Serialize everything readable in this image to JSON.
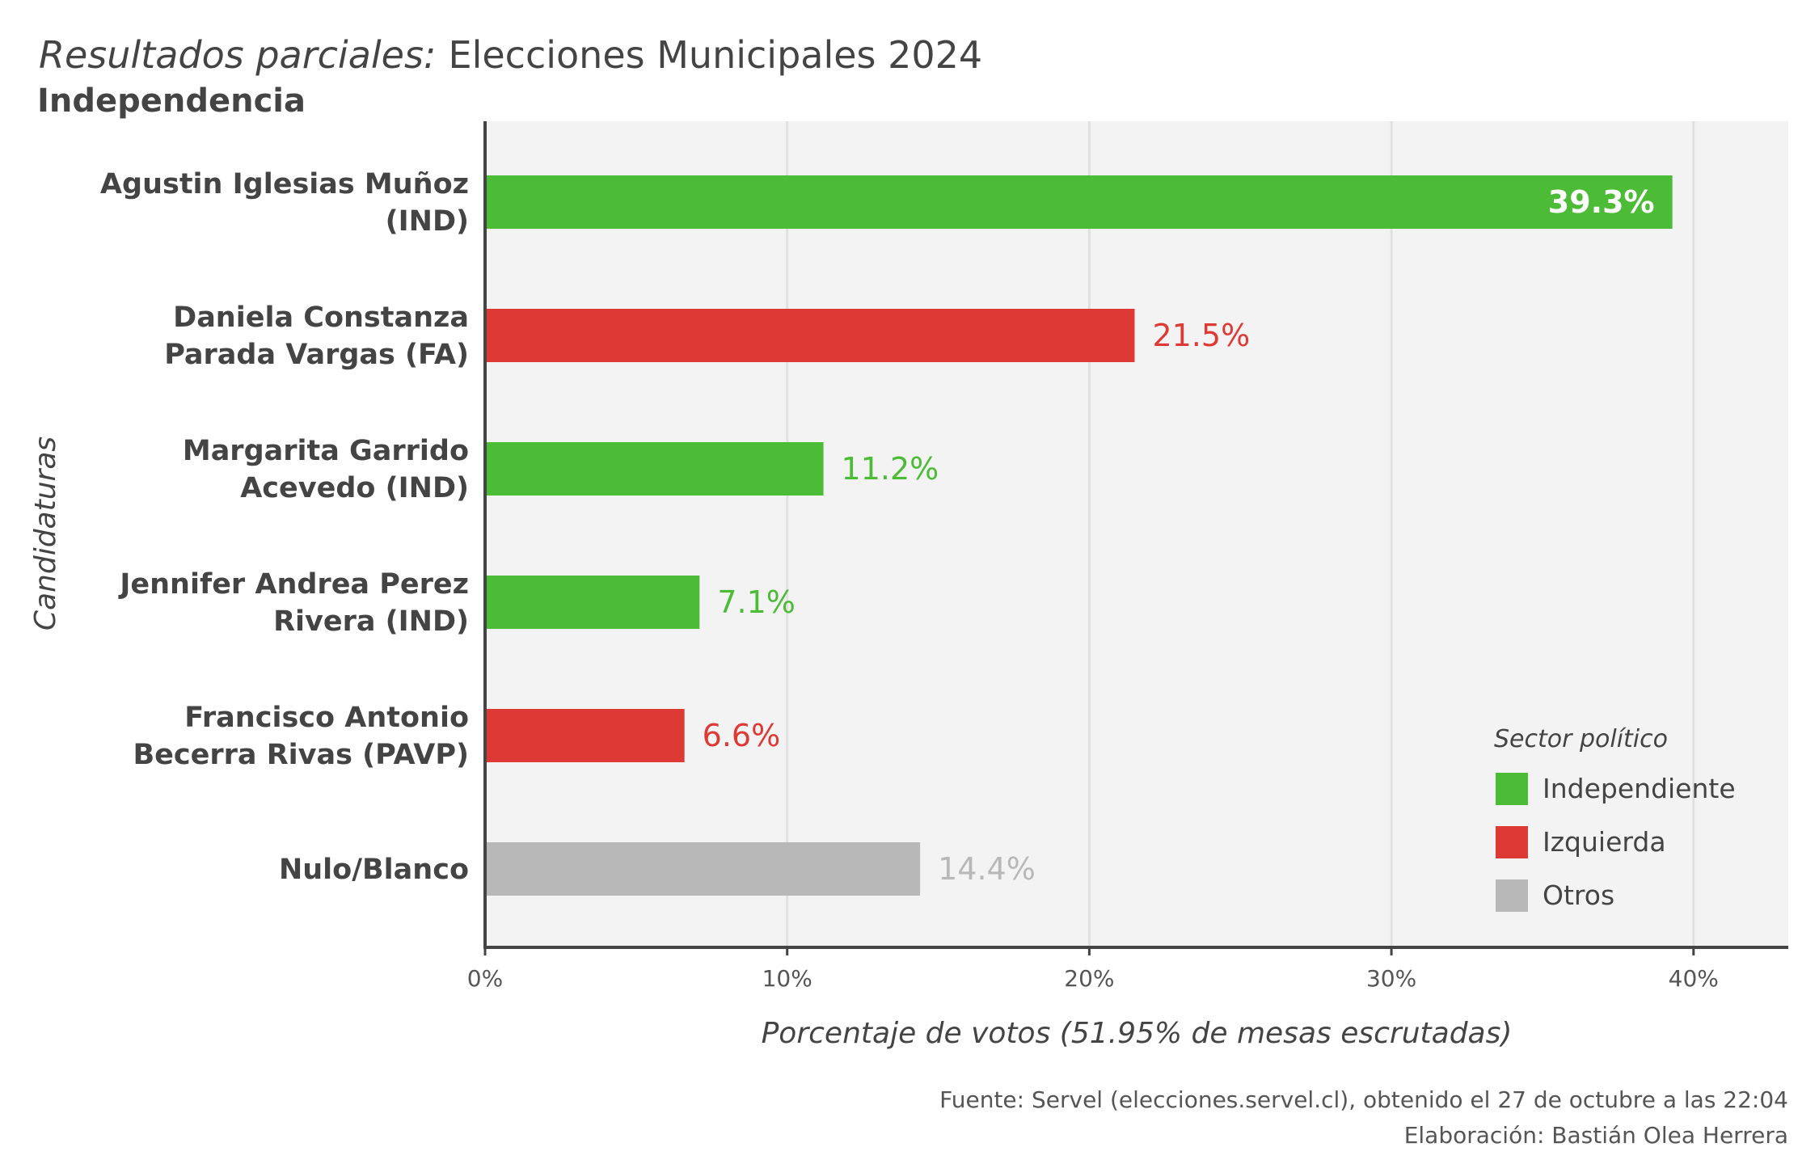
{
  "title_prefix": "Resultados parciales:",
  "title_main": "Elecciones Municipales 2024",
  "subtitle": "Independencia",
  "caption_source": "Fuente: Servel (elecciones.servel.cl), obtenido el 27 de octubre a las 22:04",
  "caption_author": "Elaboración: Bastián Olea Herrera",
  "colors": {
    "Independiente": "#4cbb36",
    "Izquierda": "#de3a35",
    "Otros": "#b8b8b8",
    "panel": "#f3f3f3",
    "grid": "#e0e0e0",
    "axis": "#444444"
  },
  "chart_data": {
    "type": "bar",
    "orientation": "horizontal",
    "xlabel": "Porcentaje de votos (51.95% de mesas escrutadas)",
    "ylabel": "Candidaturas",
    "xlim": [
      0,
      43
    ],
    "xticks": [
      0,
      10,
      20,
      30,
      40
    ],
    "xtick_labels": [
      "0%",
      "10%",
      "20%",
      "30%",
      "40%"
    ],
    "grid": true,
    "legend": {
      "title": "Sector político",
      "position": "bottom-right",
      "entries": [
        "Independiente",
        "Izquierda",
        "Otros"
      ]
    },
    "categories": [
      [
        "Agustin Iglesias Muñoz",
        "(IND)"
      ],
      [
        "Daniela Constanza",
        "Parada Vargas (FA)"
      ],
      [
        "Margarita Garrido",
        "Acevedo (IND)"
      ],
      [
        "Jennifer Andrea Perez",
        "Rivera (IND)"
      ],
      [
        "Francisco Antonio",
        "Becerra Rivas (PAVP)"
      ],
      [
        "Nulo/Blanco"
      ]
    ],
    "values": [
      39.3,
      21.5,
      11.2,
      7.1,
      6.6,
      14.4
    ],
    "value_labels": [
      "39.3%",
      "21.5%",
      "11.2%",
      "7.1%",
      "6.6%",
      "14.4%"
    ],
    "sectors": [
      "Independiente",
      "Izquierda",
      "Independiente",
      "Independiente",
      "Izquierda",
      "Otros"
    ]
  }
}
